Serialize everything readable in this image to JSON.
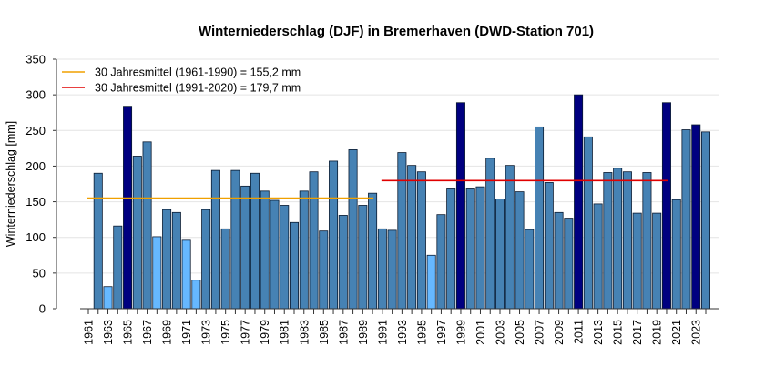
{
  "chart_data": {
    "type": "bar",
    "title": "Winterniederschlag (DJF) in Bremerhaven (DWD-Station 701)",
    "xlabel": "",
    "ylabel": "Winterniederschlag [mm]",
    "ylim": [
      0,
      350
    ],
    "yticks": [
      0,
      50,
      100,
      150,
      200,
      250,
      300,
      350
    ],
    "grid": true,
    "legend_placement": "top-left",
    "colors": {
      "low": "#66b8ff",
      "normal": "#4682b4",
      "high": "#000080",
      "mean1": "#f0a000",
      "mean2": "#e00000"
    },
    "categories": [
      1961,
      1962,
      1963,
      1964,
      1965,
      1966,
      1967,
      1968,
      1969,
      1970,
      1971,
      1972,
      1973,
      1974,
      1975,
      1976,
      1977,
      1978,
      1979,
      1980,
      1981,
      1982,
      1983,
      1984,
      1985,
      1986,
      1987,
      1988,
      1989,
      1990,
      1991,
      1992,
      1993,
      1994,
      1995,
      1996,
      1997,
      1998,
      1999,
      2000,
      2001,
      2002,
      2003,
      2004,
      2005,
      2006,
      2007,
      2008,
      2009,
      2010,
      2011,
      2012,
      2013,
      2014,
      2015,
      2016,
      2017,
      2018,
      2019,
      2020,
      2021,
      2022,
      2023,
      2024
    ],
    "values": [
      null,
      190,
      31,
      116,
      284,
      214,
      234,
      101,
      139,
      135,
      96,
      40,
      139,
      194,
      112,
      194,
      172,
      190,
      165,
      152,
      145,
      121,
      165,
      192,
      109,
      207,
      131,
      223,
      145,
      162,
      112,
      110,
      219,
      201,
      192,
      75,
      132,
      168,
      289,
      168,
      171,
      211,
      154,
      201,
      164,
      111,
      255,
      177,
      135,
      127,
      300,
      241,
      147,
      191,
      197,
      192,
      134,
      191,
      134,
      289,
      153,
      251,
      258,
      248
    ],
    "means": [
      {
        "label": "30 Jahresmittel (1961-1990) = 155,2 mm",
        "value": 155.2,
        "from": 1961,
        "to": 1990,
        "color": "#f0a000"
      },
      {
        "label": "30 Jahresmittel (1991-2020) = 179,7 mm",
        "value": 179.7,
        "from": 1991,
        "to": 2020,
        "color": "#e00000"
      }
    ]
  }
}
